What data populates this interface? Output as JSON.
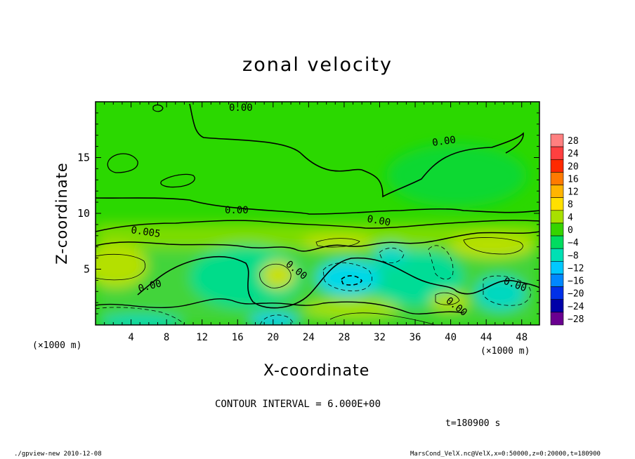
{
  "title": "zonal velocity",
  "chart_data": {
    "type": "heatmap",
    "title": "zonal velocity",
    "xlabel": "X-coordinate",
    "ylabel": "Z-coordinate",
    "x_unit_label": "(×1000 m)",
    "xlim": [
      0,
      50
    ],
    "ylim": [
      0,
      20
    ],
    "x_ticks": [
      4,
      8,
      12,
      16,
      20,
      24,
      28,
      32,
      36,
      40,
      44,
      48
    ],
    "y_ticks": [
      5,
      10,
      15
    ],
    "colorbar": {
      "levels": [
        28,
        24,
        20,
        16,
        12,
        8,
        4,
        0,
        -4,
        -8,
        -12,
        -16,
        -20,
        -24,
        -28
      ],
      "colors": [
        "#ff8080",
        "#ff4040",
        "#ff2a00",
        "#ff7a00",
        "#ffb400",
        "#ffe000",
        "#a8e000",
        "#36d400",
        "#00dc60",
        "#00e0b4",
        "#00c8ff",
        "#0088ff",
        "#0030e8",
        "#0000a8",
        "#6a0090"
      ]
    },
    "contour_labels": [
      "0.00",
      "0.00",
      "0.00",
      "0.00",
      "0.005",
      "0.00",
      "0.00",
      "0.00"
    ],
    "regions": [
      {
        "x": [
          0,
          50
        ],
        "z": [
          9.5,
          20
        ],
        "value": 0
      },
      {
        "x": [
          0,
          50
        ],
        "z": [
          7,
          9.5
        ],
        "value": 3
      },
      {
        "x": [
          0,
          5
        ],
        "z": [
          4,
          7
        ],
        "value": 6
      },
      {
        "x": [
          17,
          21
        ],
        "z": [
          4,
          6
        ],
        "value": 5
      },
      {
        "x": [
          27,
          31
        ],
        "z": [
          3.2,
          5.2
        ],
        "value": -10
      },
      {
        "x": [
          43,
          49
        ],
        "z": [
          2,
          5
        ],
        "value": -7
      },
      {
        "x": [
          0,
          3
        ],
        "z": [
          0,
          1.5
        ],
        "value": -10
      },
      {
        "x": [
          18,
          22
        ],
        "z": [
          0,
          1
        ],
        "value": -10
      }
    ]
  },
  "contour_interval": "CONTOUR INTERVAL = 6.000E+00",
  "time_label": "t=180900  s",
  "footer_left": "./gpview-new   2010-12-08",
  "footer_right": "MarsCond_VelX.nc@VelX,x=0:50000,z=0:20000,t=180900"
}
